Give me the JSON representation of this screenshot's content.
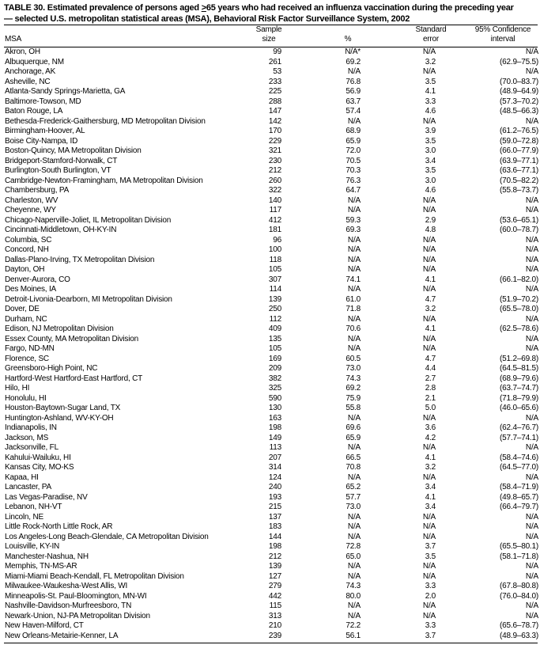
{
  "title": {
    "prefix": "TABLE 30. Estimated prevalence of persons aged ",
    "age_symbol": ">",
    "suffix": "65 years who had received an influenza vaccination during the preceding year",
    "line2": "— selected U.S. metropolitan statistical areas (MSA), Behavioral Risk Factor Surveillance System, 2002"
  },
  "headers": {
    "msa": "MSA",
    "sample_1": "Sample",
    "sample_2": "size",
    "percent": "%",
    "se_1": "Standard",
    "se_2": "error",
    "ci_1": "95% Confidence",
    "ci_2": "interval"
  },
  "rows": [
    [
      "Akron, OH",
      "99",
      "N/A*",
      "N/A",
      "N/A"
    ],
    [
      "Albuquerque, NM",
      "261",
      "69.2",
      "3.2",
      "(62.9–75.5)"
    ],
    [
      "Anchorage, AK",
      "53",
      "N/A",
      "N/A",
      "N/A"
    ],
    [
      "Asheville, NC",
      "233",
      "76.8",
      "3.5",
      "(70.0–83.7)"
    ],
    [
      "Atlanta-Sandy Springs-Marietta, GA",
      "225",
      "56.9",
      "4.1",
      "(48.9–64.9)"
    ],
    [
      "Baltimore-Towson, MD",
      "288",
      "63.7",
      "3.3",
      "(57.3–70.2)"
    ],
    [
      "Baton Rouge, LA",
      "147",
      "57.4",
      "4.6",
      "(48.5–66.3)"
    ],
    [
      "Bethesda-Frederick-Gaithersburg, MD Metropolitan Division",
      "142",
      "N/A",
      "N/A",
      "N/A"
    ],
    [
      "Birmingham-Hoover, AL",
      "170",
      "68.9",
      "3.9",
      "(61.2–76.5)"
    ],
    [
      "Boise City-Nampa, ID",
      "229",
      "65.9",
      "3.5",
      "(59.0–72.8)"
    ],
    [
      "Boston-Quincy, MA Metropolitan Division",
      "321",
      "72.0",
      "3.0",
      "(66.0–77.9)"
    ],
    [
      "Bridgeport-Stamford-Norwalk, CT",
      "230",
      "70.5",
      "3.4",
      "(63.9–77.1)"
    ],
    [
      "Burlington-South Burlington, VT",
      "212",
      "70.3",
      "3.5",
      "(63.6–77.1)"
    ],
    [
      "Cambridge-Newton-Framingham, MA Metropolitan Division",
      "260",
      "76.3",
      "3.0",
      "(70.5–82.2)"
    ],
    [
      "Chambersburg, PA",
      "322",
      "64.7",
      "4.6",
      "(55.8–73.7)"
    ],
    [
      "Charleston, WV",
      "140",
      "N/A",
      "N/A",
      "N/A"
    ],
    [
      "Cheyenne, WY",
      "117",
      "N/A",
      "N/A",
      "N/A"
    ],
    [
      "Chicago-Naperville-Joliet, IL Metropolitan Division",
      "412",
      "59.3",
      "2.9",
      "(53.6–65.1)"
    ],
    [
      "Cincinnati-Middletown, OH-KY-IN",
      "181",
      "69.3",
      "4.8",
      "(60.0–78.7)"
    ],
    [
      "Columbia, SC",
      "96",
      "N/A",
      "N/A",
      "N/A"
    ],
    [
      "Concord, NH",
      "100",
      "N/A",
      "N/A",
      "N/A"
    ],
    [
      "Dallas-Plano-Irving, TX Metropolitan Division",
      "118",
      "N/A",
      "N/A",
      "N/A"
    ],
    [
      "Dayton, OH",
      "105",
      "N/A",
      "N/A",
      "N/A"
    ],
    [
      "Denver-Aurora, CO",
      "307",
      "74.1",
      "4.1",
      "(66.1–82.0)"
    ],
    [
      "Des Moines, IA",
      "114",
      "N/A",
      "N/A",
      "N/A"
    ],
    [
      "Detroit-Livonia-Dearborn, MI Metropolitan Division",
      "139",
      "61.0",
      "4.7",
      "(51.9–70.2)"
    ],
    [
      "Dover, DE",
      "250",
      "71.8",
      "3.2",
      "(65.5–78.0)"
    ],
    [
      "Durham, NC",
      "112",
      "N/A",
      "N/A",
      "N/A"
    ],
    [
      "Edison, NJ Metropolitan Division",
      "409",
      "70.6",
      "4.1",
      "(62.5–78.6)"
    ],
    [
      "Essex County, MA Metropolitan Division",
      "135",
      "N/A",
      "N/A",
      "N/A"
    ],
    [
      "Fargo, ND-MN",
      "105",
      "N/A",
      "N/A",
      "N/A"
    ],
    [
      "Florence, SC",
      "169",
      "60.5",
      "4.7",
      "(51.2–69.8)"
    ],
    [
      "Greensboro-High Point, NC",
      "209",
      "73.0",
      "4.4",
      "(64.5–81.5)"
    ],
    [
      "Hartford-West Hartford-East Hartford, CT",
      "382",
      "74.3",
      "2.7",
      "(68.9–79.6)"
    ],
    [
      "Hilo, HI",
      "325",
      "69.2",
      "2.8",
      "(63.7–74.7)"
    ],
    [
      "Honolulu, HI",
      "590",
      "75.9",
      "2.1",
      "(71.8–79.9)"
    ],
    [
      "Houston-Baytown-Sugar Land, TX",
      "130",
      "55.8",
      "5.0",
      "(46.0–65.6)"
    ],
    [
      "Huntington-Ashland, WV-KY-OH",
      "163",
      "N/A",
      "N/A",
      "N/A"
    ],
    [
      "Indianapolis, IN",
      "198",
      "69.6",
      "3.6",
      "(62.4–76.7)"
    ],
    [
      "Jackson, MS",
      "149",
      "65.9",
      "4.2",
      "(57.7–74.1)"
    ],
    [
      "Jacksonville, FL",
      "113",
      "N/A",
      "N/A",
      "N/A"
    ],
    [
      "Kahului-Wailuku, HI",
      "207",
      "66.5",
      "4.1",
      "(58.4–74.6)"
    ],
    [
      "Kansas City, MO-KS",
      "314",
      "70.8",
      "3.2",
      "(64.5–77.0)"
    ],
    [
      "Kapaa, HI",
      "124",
      "N/A",
      "N/A",
      "N/A"
    ],
    [
      "Lancaster, PA",
      "240",
      "65.2",
      "3.4",
      "(58.4–71.9)"
    ],
    [
      "Las Vegas-Paradise, NV",
      "193",
      "57.7",
      "4.1",
      "(49.8–65.7)"
    ],
    [
      "Lebanon, NH-VT",
      "215",
      "73.0",
      "3.4",
      "(66.4–79.7)"
    ],
    [
      "Lincoln, NE",
      "137",
      "N/A",
      "N/A",
      "N/A"
    ],
    [
      "Little Rock-North Little Rock, AR",
      "183",
      "N/A",
      "N/A",
      "N/A"
    ],
    [
      "Los Angeles-Long Beach-Glendale, CA Metropolitan Division",
      "144",
      "N/A",
      "N/A",
      "N/A"
    ],
    [
      "Louisville, KY-IN",
      "198",
      "72.8",
      "3.7",
      "(65.5–80.1)"
    ],
    [
      "Manchester-Nashua, NH",
      "212",
      "65.0",
      "3.5",
      "(58.1–71.8)"
    ],
    [
      "Memphis, TN-MS-AR",
      "139",
      "N/A",
      "N/A",
      "N/A"
    ],
    [
      "Miami-Miami Beach-Kendall, FL Metropolitan Division",
      "127",
      "N/A",
      "N/A",
      "N/A"
    ],
    [
      "Milwaukee-Waukesha-West Allis, WI",
      "279",
      "74.3",
      "3.3",
      "(67.8–80.8)"
    ],
    [
      "Minneapolis-St. Paul-Bloomington, MN-WI",
      "442",
      "80.0",
      "2.0",
      "(76.0–84.0)"
    ],
    [
      "Nashville-Davidson-Murfreesboro, TN",
      "115",
      "N/A",
      "N/A",
      "N/A"
    ],
    [
      "Newark-Union, NJ-PA Metropolitan Division",
      "313",
      "N/A",
      "N/A",
      "N/A"
    ],
    [
      "New Haven-Milford, CT",
      "210",
      "72.2",
      "3.3",
      "(65.6–78.7)"
    ],
    [
      "New Orleans-Metairie-Kenner, LA",
      "239",
      "56.1",
      "3.7",
      "(48.9–63.3)"
    ]
  ]
}
